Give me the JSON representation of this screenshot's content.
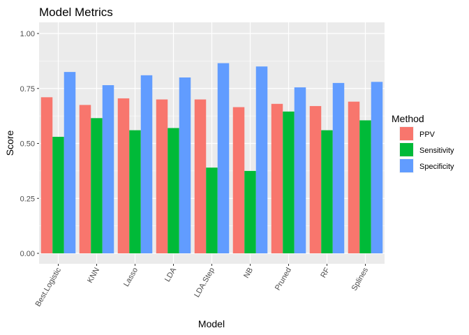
{
  "chart_data": {
    "type": "bar",
    "title": "Model Metrics",
    "xlabel": "Model",
    "ylabel": "Score",
    "ylim": [
      0,
      1.03
    ],
    "y_ticks": [
      "0.00",
      "0.25",
      "0.50",
      "0.75",
      "1.00"
    ],
    "grid": true,
    "legend_title": "Method",
    "legend_position": "right",
    "categories": [
      "Best.Logistic",
      "KNN",
      "Lasso",
      "LDA",
      "LDA.Step",
      "NB",
      "Pruned",
      "RF",
      "Splines"
    ],
    "series": [
      {
        "name": "PPV",
        "color": "#F8766D",
        "values": [
          0.71,
          0.675,
          0.705,
          0.7,
          0.7,
          0.665,
          0.68,
          0.67,
          0.69
        ]
      },
      {
        "name": "Sensitivity",
        "color": "#00BA38",
        "values": [
          0.53,
          0.615,
          0.56,
          0.57,
          0.39,
          0.375,
          0.645,
          0.56,
          0.605
        ]
      },
      {
        "name": "Specificity",
        "color": "#619CFF",
        "values": [
          0.825,
          0.765,
          0.81,
          0.8,
          0.865,
          0.85,
          0.755,
          0.775,
          0.78
        ]
      }
    ]
  }
}
